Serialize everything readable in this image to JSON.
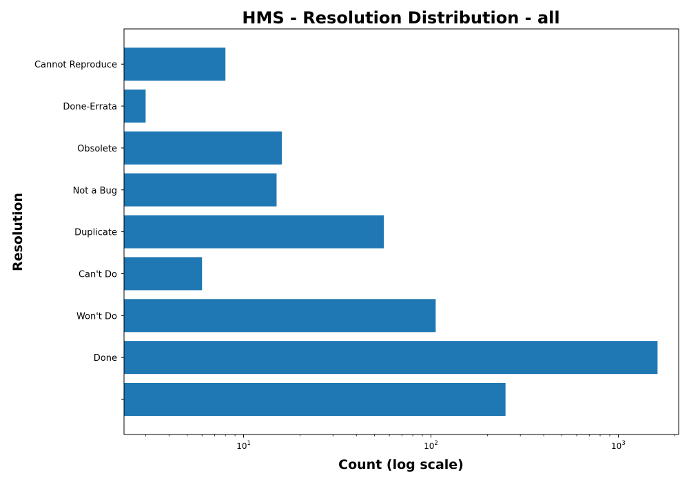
{
  "chart_data": {
    "type": "bar",
    "orientation": "horizontal",
    "title": "HMS - Resolution Distribution - all",
    "xlabel": "Count (log scale)",
    "ylabel": "Resolution",
    "x_scale": "log",
    "xlim": [
      2.3,
      2100
    ],
    "x_ticks": [
      {
        "value": 10,
        "base": "10",
        "exp": "1"
      },
      {
        "value": 100,
        "base": "10",
        "exp": "2"
      },
      {
        "value": 1000,
        "base": "10",
        "exp": "3"
      }
    ],
    "categories": [
      "",
      "Done",
      "Won't Do",
      "Can't Do",
      "Duplicate",
      "Not a Bug",
      "Obsolete",
      "Done-Errata",
      "Cannot Reproduce"
    ],
    "values": [
      250,
      1620,
      106,
      6,
      56,
      15,
      16,
      3,
      8
    ],
    "bar_color": "#1f77b4",
    "grid": false,
    "legend": "none"
  }
}
